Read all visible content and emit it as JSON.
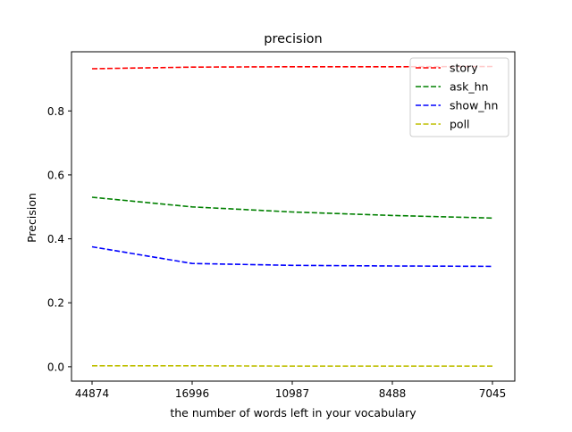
{
  "chart_data": {
    "type": "line",
    "title": "precision",
    "xlabel": "the number of words left in your vocabulary",
    "ylabel": "Precision",
    "categories": [
      "44874",
      "16996",
      "10987",
      "8488",
      "7045"
    ],
    "yticks": [
      0.0,
      0.2,
      0.4,
      0.6,
      0.8
    ],
    "ytick_labels": [
      "0.0",
      "0.2",
      "0.4",
      "0.6",
      "0.8"
    ],
    "ylim": [
      -0.045,
      0.985
    ],
    "grid": false,
    "legend_position": "top-right",
    "line_style": "dashed",
    "series": [
      {
        "name": "story",
        "color": "#ff0000",
        "values": [
          0.932,
          0.937,
          0.938,
          0.938,
          0.939
        ]
      },
      {
        "name": "ask_hn",
        "color": "#008000",
        "values": [
          0.53,
          0.5,
          0.484,
          0.473,
          0.465
        ]
      },
      {
        "name": "show_hn",
        "color": "#0000ff",
        "values": [
          0.375,
          0.323,
          0.317,
          0.315,
          0.314
        ]
      },
      {
        "name": "poll",
        "color": "#bfbf00",
        "values": [
          0.003,
          0.003,
          0.002,
          0.002,
          0.002
        ]
      }
    ]
  }
}
